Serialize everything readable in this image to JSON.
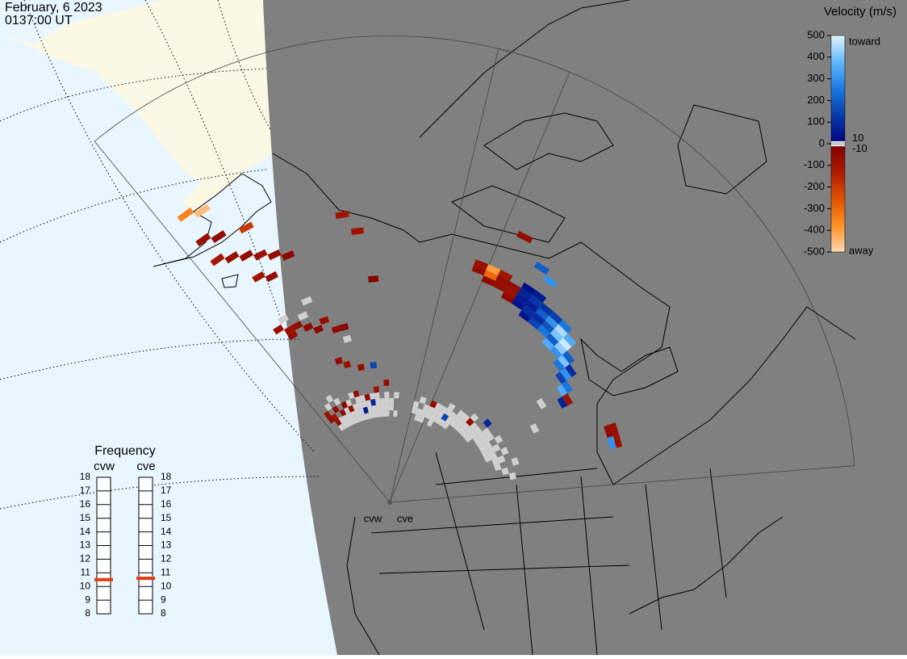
{
  "header": {
    "date": "February, 6 2023",
    "time": "0137:00 UT"
  },
  "velocity_scale": {
    "title": "Velocity (m/s)",
    "lim": [
      -500,
      500
    ],
    "ticks": [
      500,
      400,
      300,
      200,
      100,
      0,
      -100,
      -200,
      -300,
      -400,
      -500
    ],
    "inner_ticks": [
      10,
      -10
    ],
    "toward_label": "toward",
    "away_label": "away",
    "colors": [
      "#e0f4ff",
      "#60b8ff",
      "#1878e0",
      "#0838a8",
      "#000080",
      "#800000",
      "#a81800",
      "#e05000",
      "#ff9020",
      "#ffd8b0"
    ],
    "ground_scatter_color": "#d0d0d0"
  },
  "frequency": {
    "title": "Frequency",
    "lim": [
      8,
      18
    ],
    "ticks": [
      8,
      9,
      10,
      11,
      12,
      13,
      14,
      15,
      16,
      17,
      18
    ],
    "values": [
      10.5,
      10.6
    ]
  },
  "radars": [
    {
      "name": "cvw",
      "cells": [
        [
          1,
          52,
          -80
        ],
        [
          2,
          51,
          -60
        ],
        [
          1,
          48,
          -120
        ],
        [
          2,
          47,
          -80
        ],
        [
          3,
          46,
          -60
        ],
        [
          4,
          45,
          -90
        ],
        [
          5,
          44,
          -70
        ],
        [
          6,
          43,
          -40
        ],
        [
          3,
          42,
          -100
        ],
        [
          4,
          41,
          -60
        ],
        [
          2,
          33,
          -80
        ],
        [
          3,
          32,
          -90
        ],
        [
          4,
          32,
          -60
        ],
        [
          3,
          31,
          -70
        ],
        [
          5,
          31,
          -50
        ],
        [
          6,
          30,
          -40
        ],
        [
          7,
          31,
          -80
        ],
        [
          8,
          29,
          -60
        ],
        [
          9,
          29,
          -30
        ],
        [
          1,
          17,
          -80
        ],
        [
          1,
          16,
          -60
        ],
        [
          2,
          16,
          -90
        ],
        [
          2,
          15,
          -70
        ],
        [
          3,
          17,
          -50
        ],
        [
          4,
          16,
          -60
        ],
        [
          5,
          17,
          -40
        ],
        [
          6,
          16,
          -70
        ],
        [
          8,
          18,
          -60
        ],
        [
          10,
          17,
          -50
        ],
        [
          12,
          18,
          -80
        ],
        [
          14,
          19,
          -60
        ],
        [
          9,
          15,
          60
        ],
        [
          11,
          16,
          80
        ],
        [
          7,
          24,
          -60
        ],
        [
          8,
          23,
          -90
        ],
        [
          10,
          22,
          -70
        ],
        [
          12,
          22,
          150
        ],
        [
          1,
          57,
          -350
        ],
        [
          2,
          56,
          -450
        ],
        [
          4,
          50,
          -200
        ],
        [
          13,
          36,
          -30
        ],
        [
          12,
          44,
          -90
        ],
        [
          11,
          47,
          -100
        ]
      ],
      "ground_scatter": [
        [
          2,
          14
        ],
        [
          2,
          18
        ],
        [
          3,
          14
        ],
        [
          3,
          15
        ],
        [
          3,
          19
        ],
        [
          4,
          14
        ],
        [
          4,
          15
        ],
        [
          4,
          18
        ],
        [
          5,
          14
        ],
        [
          5,
          15
        ],
        [
          5,
          16
        ],
        [
          6,
          14
        ],
        [
          6,
          15
        ],
        [
          6,
          17
        ],
        [
          7,
          14
        ],
        [
          7,
          15
        ],
        [
          7,
          16
        ],
        [
          7,
          18
        ],
        [
          8,
          14
        ],
        [
          8,
          15
        ],
        [
          8,
          16
        ],
        [
          8,
          17
        ],
        [
          9,
          14
        ],
        [
          9,
          16
        ],
        [
          9,
          17
        ],
        [
          10,
          14
        ],
        [
          10,
          15
        ],
        [
          10,
          16
        ],
        [
          11,
          14
        ],
        [
          11,
          15
        ],
        [
          11,
          17
        ],
        [
          12,
          14
        ],
        [
          12,
          15
        ],
        [
          12,
          16
        ],
        [
          12,
          17
        ],
        [
          13,
          14
        ],
        [
          13,
          15
        ],
        [
          13,
          16
        ],
        [
          14,
          14
        ],
        [
          14,
          15
        ],
        [
          14,
          16
        ],
        [
          14,
          17
        ],
        [
          15,
          15
        ],
        [
          15,
          16
        ],
        [
          16,
          14
        ],
        [
          16,
          17
        ],
        [
          3,
          34
        ],
        [
          5,
          33
        ],
        [
          6,
          35
        ],
        [
          9,
          27
        ]
      ]
    },
    {
      "name": "cve",
      "cells": [
        [
          2,
          40,
          -60
        ],
        [
          2,
          41,
          -80
        ],
        [
          3,
          39,
          -50
        ],
        [
          3,
          40,
          -300
        ],
        [
          3,
          41,
          -400
        ],
        [
          4,
          39,
          -70
        ],
        [
          4,
          40,
          -60
        ],
        [
          4,
          41,
          -100
        ],
        [
          5,
          38,
          -50
        ],
        [
          5,
          39,
          -80
        ],
        [
          5,
          40,
          -60
        ],
        [
          6,
          38,
          40
        ],
        [
          6,
          39,
          60
        ],
        [
          6,
          40,
          80
        ],
        [
          6,
          41,
          30
        ],
        [
          7,
          37,
          50
        ],
        [
          7,
          38,
          100
        ],
        [
          7,
          39,
          70
        ],
        [
          7,
          40,
          120
        ],
        [
          7,
          41,
          60
        ],
        [
          8,
          37,
          150
        ],
        [
          8,
          38,
          90
        ],
        [
          8,
          39,
          200
        ],
        [
          8,
          40,
          110
        ],
        [
          9,
          37,
          250
        ],
        [
          9,
          38,
          180
        ],
        [
          9,
          39,
          300
        ],
        [
          9,
          40,
          140
        ],
        [
          10,
          36,
          350
        ],
        [
          10,
          37,
          200
        ],
        [
          10,
          38,
          400
        ],
        [
          10,
          39,
          450
        ],
        [
          10,
          40,
          250
        ],
        [
          11,
          36,
          300
        ],
        [
          11,
          37,
          420
        ],
        [
          11,
          38,
          480
        ],
        [
          11,
          39,
          350
        ],
        [
          12,
          35,
          250
        ],
        [
          12,
          36,
          400
        ],
        [
          12,
          37,
          200
        ],
        [
          13,
          34,
          150
        ],
        [
          13,
          35,
          300
        ],
        [
          13,
          36,
          100
        ],
        [
          14,
          33,
          350
        ],
        [
          14,
          34,
          250
        ],
        [
          15,
          32,
          80
        ],
        [
          15,
          33,
          -90
        ],
        [
          6,
          45,
          200
        ],
        [
          7,
          44,
          300
        ],
        [
          19,
          38,
          -80
        ],
        [
          19,
          37,
          -60
        ],
        [
          20,
          38,
          -90
        ],
        [
          20,
          37,
          300
        ],
        [
          4,
          48,
          -60
        ],
        [
          3,
          17,
          -70
        ],
        [
          6,
          16,
          150
        ],
        [
          10,
          18,
          -60
        ],
        [
          12,
          20,
          80
        ]
      ],
      "ground_scatter": [
        [
          0,
          15
        ],
        [
          0,
          16
        ],
        [
          1,
          14
        ],
        [
          1,
          15
        ],
        [
          1,
          17
        ],
        [
          2,
          14
        ],
        [
          2,
          15
        ],
        [
          2,
          16
        ],
        [
          3,
          15
        ],
        [
          3,
          16
        ],
        [
          4,
          14
        ],
        [
          4,
          15
        ],
        [
          4,
          16
        ],
        [
          4,
          17
        ],
        [
          5,
          15
        ],
        [
          5,
          16
        ],
        [
          5,
          17
        ],
        [
          6,
          15
        ],
        [
          6,
          17
        ],
        [
          6,
          18
        ],
        [
          7,
          15
        ],
        [
          7,
          16
        ],
        [
          7,
          17
        ],
        [
          8,
          16
        ],
        [
          8,
          17
        ],
        [
          8,
          18
        ],
        [
          9,
          16
        ],
        [
          9,
          17
        ],
        [
          9,
          18
        ],
        [
          10,
          16
        ],
        [
          10,
          17
        ],
        [
          10,
          19
        ],
        [
          11,
          16
        ],
        [
          11,
          17
        ],
        [
          11,
          18
        ],
        [
          12,
          16
        ],
        [
          12,
          17
        ],
        [
          12,
          18
        ],
        [
          13,
          17
        ],
        [
          13,
          18
        ],
        [
          13,
          19
        ],
        [
          14,
          17
        ],
        [
          14,
          18
        ],
        [
          14,
          19
        ],
        [
          15,
          17
        ],
        [
          15,
          18
        ],
        [
          15,
          20
        ],
        [
          16,
          17
        ],
        [
          16,
          18
        ],
        [
          16,
          19
        ],
        [
          17,
          17
        ],
        [
          17,
          18
        ],
        [
          17,
          20
        ],
        [
          18,
          18
        ],
        [
          18,
          19
        ],
        [
          19,
          18
        ],
        [
          19,
          21
        ],
        [
          20,
          19
        ],
        [
          21,
          20
        ],
        [
          14,
          29
        ],
        [
          16,
          26
        ]
      ]
    }
  ]
}
